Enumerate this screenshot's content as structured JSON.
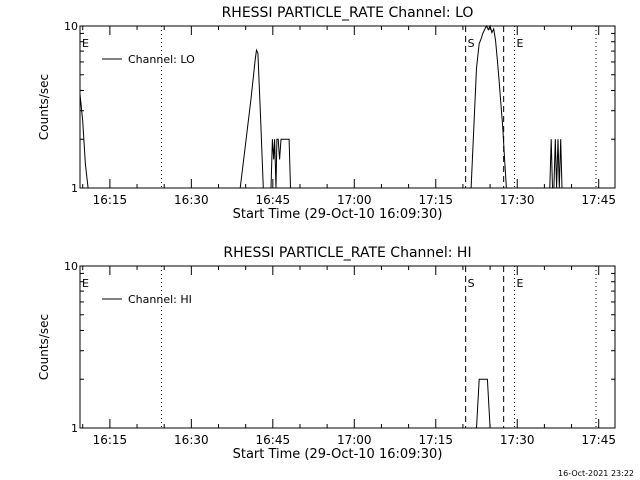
{
  "footer": {
    "timestamp": "16-Oct-2021 23:22"
  },
  "chart_data": [
    {
      "type": "line",
      "title": "RHESSI PARTICLE_RATE Channel: LO",
      "xlabel": "Start Time (29-Oct-10 16:09:30)",
      "ylabel": "Counts/sec",
      "y_scale": "log",
      "ylim": [
        1,
        10
      ],
      "xlim": [
        "16:09:30",
        "17:48:00"
      ],
      "x_ticks": [
        "16:15",
        "16:30",
        "16:45",
        "17:00",
        "17:15",
        "17:30",
        "17:45"
      ],
      "y_ticks": [
        "1",
        "10"
      ],
      "legend": {
        "position": "top-left",
        "entries": [
          "Channel: LO"
        ]
      },
      "markers": [
        {
          "time": "16:09:30",
          "label": "E",
          "style": "dotted"
        },
        {
          "time": "16:24:30",
          "label": "",
          "style": "dotted"
        },
        {
          "time": "17:20:30",
          "label": "S",
          "style": "dashed"
        },
        {
          "time": "17:27:30",
          "label": "",
          "style": "dashed"
        },
        {
          "time": "17:29:30",
          "label": "E",
          "style": "dotted"
        },
        {
          "time": "17:44:30",
          "label": "",
          "style": "dotted"
        }
      ],
      "series": [
        {
          "name": "Channel: LO",
          "x": [
            "16:09:30",
            "16:10:00",
            "16:10:30",
            "16:11:00",
            "16:11:15",
            "16:39:00",
            "16:40:00",
            "16:41:00",
            "16:41:45",
            "16:42:00",
            "16:42:15",
            "16:42:45",
            "16:43:15",
            "16:44:40",
            "16:44:55",
            "16:45:10",
            "16:45:20",
            "16:45:35",
            "16:45:45",
            "16:46:00",
            "16:46:15",
            "16:46:30",
            "16:46:45",
            "16:48:00",
            "16:48:15",
            "17:21:30",
            "17:22:30",
            "17:23:00",
            "17:23:20",
            "17:23:40",
            "17:24:00",
            "17:24:20",
            "17:24:40",
            "17:25:00",
            "17:25:20",
            "17:25:40",
            "17:26:00",
            "17:26:20",
            "17:26:40",
            "17:27:00",
            "17:27:20",
            "17:27:40",
            "17:28:00",
            "17:36:00",
            "17:36:15",
            "17:36:30",
            "17:36:45",
            "17:37:00",
            "17:37:15",
            "17:37:30",
            "17:37:45",
            "17:38:00",
            "17:38:15",
            "17:38:30"
          ],
          "y": [
            3.8,
            2.6,
            1.4,
            1.0,
            1.0,
            1.0,
            1.9,
            3.6,
            6.2,
            7.1,
            6.8,
            2.7,
            1.0,
            1.0,
            2.0,
            1.5,
            2.0,
            1.0,
            2.0,
            2.0,
            1.5,
            2.0,
            2.0,
            2.0,
            1.0,
            1.0,
            5.5,
            7.8,
            8.3,
            9.0,
            9.5,
            10.0,
            9.5,
            10.0,
            9.1,
            9.6,
            8.2,
            6.2,
            4.6,
            3.3,
            2.4,
            1.5,
            1.0,
            1.0,
            2.0,
            1.0,
            1.0,
            2.0,
            1.0,
            2.0,
            1.0,
            2.0,
            1.0,
            1.0
          ]
        }
      ]
    },
    {
      "type": "line",
      "title": "RHESSI PARTICLE_RATE Channel: HI",
      "xlabel": "Start Time (29-Oct-10 16:09:30)",
      "ylabel": "Counts/sec",
      "y_scale": "log",
      "ylim": [
        1,
        10
      ],
      "xlim": [
        "16:09:30",
        "17:48:00"
      ],
      "x_ticks": [
        "16:15",
        "16:30",
        "16:45",
        "17:00",
        "17:15",
        "17:30",
        "17:45"
      ],
      "y_ticks": [
        "1",
        "10"
      ],
      "legend": {
        "position": "top-left",
        "entries": [
          "Channel: HI"
        ]
      },
      "markers": [
        {
          "time": "16:09:30",
          "label": "E",
          "style": "dotted"
        },
        {
          "time": "16:24:30",
          "label": "",
          "style": "dotted"
        },
        {
          "time": "17:20:30",
          "label": "S",
          "style": "dashed"
        },
        {
          "time": "17:27:30",
          "label": "",
          "style": "dashed"
        },
        {
          "time": "17:29:30",
          "label": "E",
          "style": "dotted"
        },
        {
          "time": "17:44:30",
          "label": "",
          "style": "dotted"
        }
      ],
      "series": [
        {
          "name": "Channel: HI",
          "x": [
            "17:22:30",
            "17:23:00",
            "17:24:30",
            "17:25:00"
          ],
          "y": [
            1.0,
            2.0,
            2.0,
            1.0
          ]
        }
      ]
    }
  ]
}
